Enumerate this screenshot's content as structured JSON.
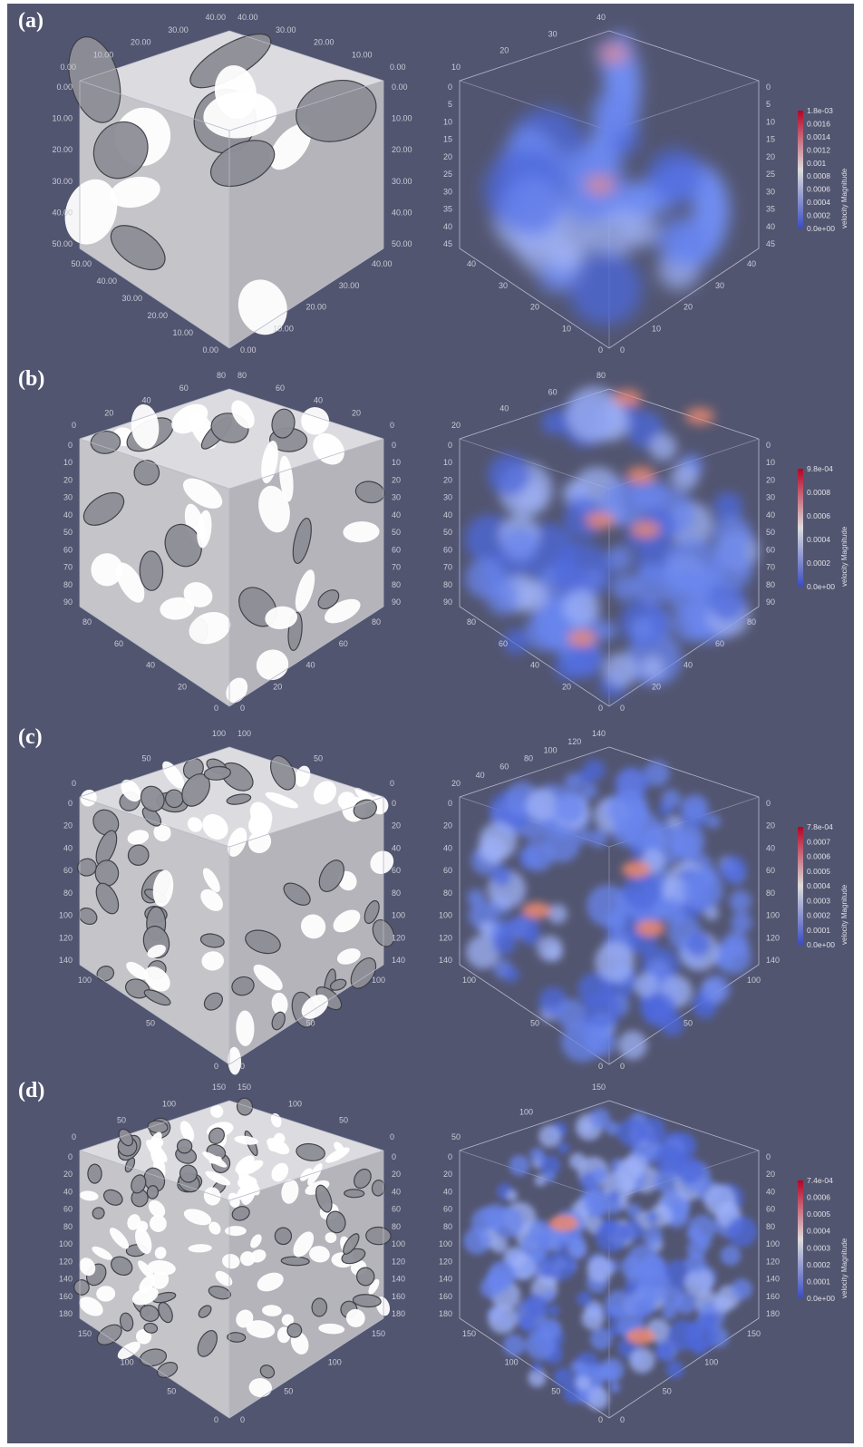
{
  "panels": [
    {
      "label": "(a)",
      "left_ticks_top": [
        "40.00",
        "30.00",
        "20.00",
        "10.00",
        "0.00"
      ],
      "right_ticks_top": [
        "40.00",
        "30.00",
        "20.00",
        "10.00",
        "0.00"
      ],
      "left_ticks_side": [
        "0.00",
        "10.00",
        "20.00",
        "30.00",
        "40.00",
        "50.00"
      ],
      "right_ticks_side": [
        "0.00",
        "10.00",
        "20.00",
        "30.00",
        "40.00",
        "50.00"
      ],
      "bottom_left": [
        "50.00",
        "40.00",
        "30.00",
        "20.00",
        "10.00",
        "0.00"
      ],
      "bottom_right": [
        "0.00",
        "10.00",
        "20.00",
        "30.00",
        "40.00"
      ],
      "vel_ticks_top": [
        "40",
        "30",
        "20",
        "10"
      ],
      "vel_ticks_side": [
        "0",
        "5",
        "10",
        "15",
        "20",
        "25",
        "30",
        "35",
        "40",
        "45"
      ],
      "vel_bottom_left": [
        "40",
        "30",
        "20",
        "10",
        "0"
      ],
      "vel_bottom_right": [
        "0",
        "10",
        "20",
        "30",
        "40"
      ],
      "colorbar": {
        "max": "1.8e-03",
        "ticks": [
          "0.0016",
          "0.0014",
          "0.0012",
          "0.001",
          "0.0008",
          "0.0006",
          "0.0004",
          "0.0002"
        ],
        "min": "0.0e+00",
        "title": "velocity Magnitude"
      }
    },
    {
      "label": "(b)",
      "left_ticks_top": [
        "80",
        "60",
        "40",
        "20",
        "0"
      ],
      "right_ticks_top": [
        "80",
        "60",
        "40",
        "20",
        "0"
      ],
      "left_ticks_side": [
        "0",
        "10",
        "20",
        "30",
        "40",
        "50",
        "60",
        "70",
        "80",
        "90"
      ],
      "right_ticks_side": [
        "0",
        "10",
        "20",
        "30",
        "40",
        "50",
        "60",
        "70",
        "80",
        "90"
      ],
      "bottom_left": [
        "80",
        "60",
        "40",
        "20",
        "0"
      ],
      "bottom_right": [
        "0",
        "20",
        "40",
        "60",
        "80"
      ],
      "vel_ticks_top": [
        "80",
        "60",
        "40",
        "20"
      ],
      "vel_ticks_side": [
        "0",
        "10",
        "20",
        "30",
        "40",
        "50",
        "60",
        "70",
        "80",
        "90"
      ],
      "vel_bottom_left": [
        "80",
        "60",
        "40",
        "20",
        "0"
      ],
      "vel_bottom_right": [
        "0",
        "20",
        "40",
        "60",
        "80"
      ],
      "colorbar": {
        "max": "9.8e-04",
        "ticks": [
          "0.0008",
          "0.0006",
          "0.0004",
          "0.0002"
        ],
        "min": "0.0e+00",
        "title": "velocity Magnitude"
      }
    },
    {
      "label": "(c)",
      "left_ticks_top": [
        "100",
        "50",
        "0"
      ],
      "right_ticks_top": [
        "100",
        "50",
        "0"
      ],
      "left_ticks_side": [
        "0",
        "20",
        "40",
        "60",
        "80",
        "100",
        "120",
        "140"
      ],
      "right_ticks_side": [
        "0",
        "20",
        "40",
        "60",
        "80",
        "100",
        "120",
        "140"
      ],
      "bottom_left": [
        "100",
        "50",
        "0"
      ],
      "bottom_right": [
        "0",
        "50",
        "100"
      ],
      "vel_ticks_top": [
        "140",
        "120",
        "100",
        "80",
        "60",
        "40",
        "20"
      ],
      "vel_ticks_side": [
        "0",
        "20",
        "40",
        "60",
        "80",
        "100",
        "120",
        "140"
      ],
      "vel_bottom_left": [
        "100",
        "50",
        "0"
      ],
      "vel_bottom_right": [
        "0",
        "50",
        "100"
      ],
      "colorbar": {
        "max": "7.8e-04",
        "ticks": [
          "0.0007",
          "0.0006",
          "0.0005",
          "0.0004",
          "0.0003",
          "0.0002",
          "0.0001"
        ],
        "min": "0.0e+00",
        "title": "velocity Magnitude"
      }
    },
    {
      "label": "(d)",
      "left_ticks_top": [
        "150",
        "100",
        "50",
        "0"
      ],
      "right_ticks_top": [
        "150",
        "100",
        "50",
        "0"
      ],
      "left_ticks_side": [
        "0",
        "20",
        "40",
        "60",
        "80",
        "100",
        "120",
        "140",
        "160",
        "180"
      ],
      "right_ticks_side": [
        "0",
        "20",
        "40",
        "60",
        "80",
        "100",
        "120",
        "140",
        "160",
        "180"
      ],
      "bottom_left": [
        "150",
        "100",
        "50",
        "0"
      ],
      "bottom_right": [
        "0",
        "50",
        "100",
        "150"
      ],
      "vel_ticks_top": [
        "150",
        "100",
        "50"
      ],
      "vel_ticks_side": [
        "0",
        "20",
        "40",
        "60",
        "80",
        "100",
        "120",
        "140",
        "160",
        "180"
      ],
      "vel_bottom_left": [
        "150",
        "100",
        "50",
        "0"
      ],
      "vel_bottom_right": [
        "0",
        "50",
        "100",
        "150"
      ],
      "colorbar": {
        "max": "7.4e-04",
        "ticks": [
          "0.0006",
          "0.0005",
          "0.0004",
          "0.0003",
          "0.0002",
          "0.0001"
        ],
        "min": "0.0e+00",
        "title": "velocity Magnitude"
      }
    }
  ],
  "colors": {
    "background": "#525570",
    "solid": "#ffffff",
    "pore_shadow": "#9a9aa2",
    "velocity_low": "#4a6be0",
    "velocity_high": "#e8806a"
  }
}
